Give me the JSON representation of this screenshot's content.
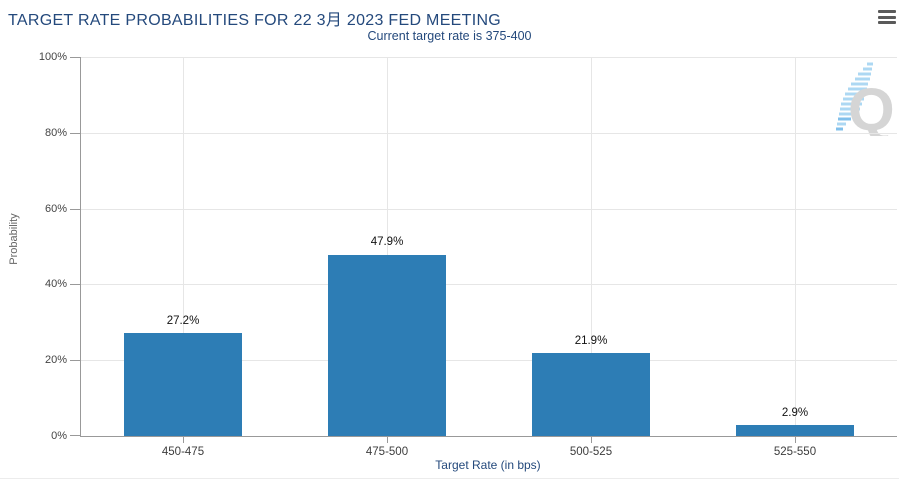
{
  "header": {
    "title": "TARGET RATE PROBABILITIES FOR 22 3月 2023 FED MEETING",
    "menu_icon": "hamburger-menu-icon"
  },
  "chart_data": {
    "type": "bar",
    "title": "TARGET RATE PROBABILITIES FOR 22 3月 2023 FED MEETING",
    "subtitle": "Current target rate is 375-400",
    "categories": [
      "450-475",
      "475-500",
      "500-525",
      "525-550"
    ],
    "values": [
      27.2,
      47.9,
      21.9,
      2.9
    ],
    "data_labels": [
      "27.2%",
      "47.9%",
      "21.9%",
      "2.9%"
    ],
    "xlabel": "Target Rate (in bps)",
    "ylabel": "Probability",
    "ylim": [
      0,
      100
    ],
    "ytick_values": [
      0,
      20,
      40,
      60,
      80,
      100
    ],
    "ytick_labels": [
      "0%",
      "20%",
      "40%",
      "60%",
      "80%",
      "100%"
    ],
    "grid": true,
    "legend_position": "none",
    "bar_color": "#2d7db5"
  },
  "watermark": {
    "letter": "Q"
  },
  "colors": {
    "bar": "#2d7db5",
    "title": "#24497c",
    "subtitle": "#24497c",
    "axis_title": "#24497c",
    "y_axis_title_gray": "#666666",
    "tick_label": "#404040",
    "data_label": "#111111",
    "gridline": "#e6e6e6",
    "axis_line": "#999999",
    "watermark_letter": "#d3d3d3",
    "watermark_swoosh": "#a9d6f3"
  }
}
